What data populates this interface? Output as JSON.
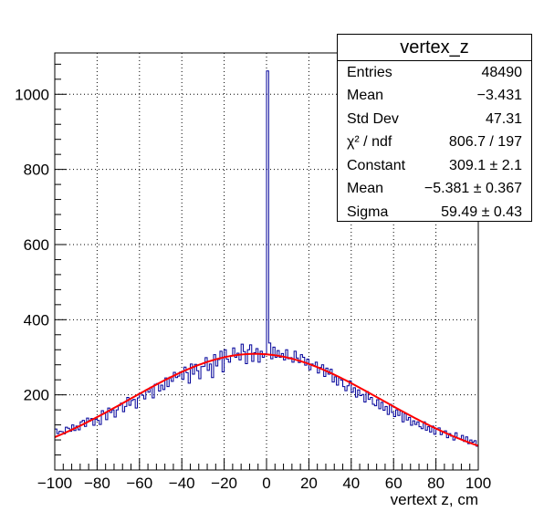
{
  "chart_data": {
    "type": "histogram",
    "title": "vertex_z",
    "xlabel": "vertext z, cm",
    "ylabel": "",
    "xlim": [
      -100,
      100
    ],
    "ylim": [
      0,
      1110
    ],
    "grid": true,
    "x_ticks": [
      "−100",
      "−80",
      "−60",
      "−40",
      "−20",
      "0",
      "20",
      "40",
      "60",
      "80",
      "100"
    ],
    "x_tick_values": [
      -100,
      -80,
      -60,
      -40,
      -20,
      0,
      20,
      40,
      60,
      80,
      100
    ],
    "y_ticks": [
      "200",
      "400",
      "600",
      "800",
      "1000"
    ],
    "y_tick_values": [
      200,
      400,
      600,
      800,
      1000
    ],
    "bin_edges": {
      "start": -100,
      "end": 100,
      "bins": 200
    },
    "bin_contents": [
      109,
      97,
      103,
      102,
      96,
      114,
      111,
      103,
      120,
      105,
      117,
      107,
      128,
      132,
      116,
      138,
      130,
      137,
      119,
      135,
      132,
      121,
      158,
      151,
      134,
      165,
      153,
      160,
      141,
      160,
      171,
      178,
      155,
      169,
      193,
      172,
      185,
      188,
      165,
      192,
      205,
      199,
      189,
      213,
      207,
      220,
      192,
      228,
      230,
      210,
      226,
      214,
      245,
      222,
      247,
      236,
      260,
      246,
      250,
      261,
      241,
      274,
      259,
      231,
      282,
      255,
      281,
      264,
      243,
      275,
      276,
      299,
      265,
      282,
      246,
      307,
      277,
      294,
      316,
      261,
      320,
      295,
      287,
      304,
      325,
      300,
      311,
      293,
      335,
      315,
      283,
      320,
      333,
      289,
      312,
      323,
      287,
      316,
      300,
      309,
      1062,
      338,
      296,
      327,
      300,
      318,
      300,
      310,
      293,
      320,
      296,
      299,
      287,
      316,
      298,
      286,
      307,
      300,
      279,
      295,
      267,
      282,
      278,
      287,
      258,
      273,
      280,
      249,
      271,
      255,
      268,
      234,
      248,
      226,
      245,
      239,
      222,
      211,
      224,
      237,
      207,
      219,
      194,
      213,
      198,
      201,
      181,
      209,
      188,
      193,
      175,
      171,
      187,
      163,
      180,
      159,
      169,
      148,
      175,
      153,
      142,
      160,
      145,
      157,
      128,
      150,
      133,
      140,
      119,
      131,
      121,
      128,
      115,
      110,
      128,
      106,
      115,
      101,
      117,
      95,
      108,
      112,
      94,
      100,
      104,
      86,
      97,
      90,
      80,
      99,
      85,
      83,
      92,
      76,
      88,
      70,
      80,
      74,
      78,
      63
    ],
    "fit": {
      "function": "gaus",
      "constant": 309.1,
      "mean": -5.381,
      "sigma": 59.49,
      "color": "#ff0000"
    },
    "histogram_color": "#000099"
  },
  "stats": {
    "title": "vertex_z",
    "rows": [
      {
        "label": "Entries",
        "value": "48490"
      },
      {
        "label": "Mean",
        "value": "−3.431"
      },
      {
        "label": "Std Dev",
        "value": "47.31"
      },
      {
        "label": "χ² / ndf",
        "value": "806.7 / 197"
      },
      {
        "label": "Constant",
        "value": "309.1 ± 2.1"
      },
      {
        "label": "Mean",
        "value": "−5.381 ± 0.367"
      },
      {
        "label": "Sigma",
        "value": "59.49 ± 0.43"
      }
    ]
  }
}
